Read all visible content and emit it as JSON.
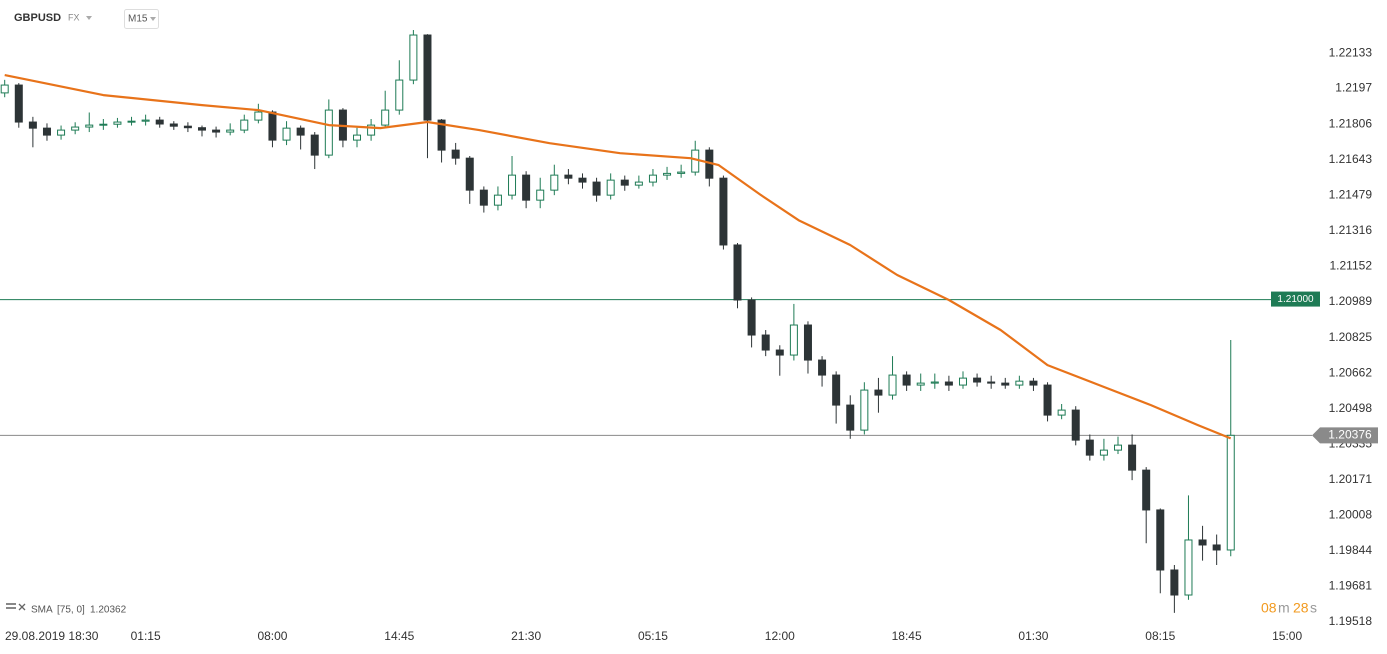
{
  "chart_data": {
    "type": "candlestick",
    "symbol": "GBPUSD",
    "market": "FX",
    "interval": "M15",
    "up_color": "#1e7b55",
    "down_color": "#2d3436",
    "xlim": [
      -1,
      280
    ],
    "ylim": [
      1.19472,
      1.22377
    ],
    "xticks": [
      {
        "value": 3,
        "label": "29.08.2019  18:30"
      },
      {
        "value": 30,
        "label": "01:15"
      },
      {
        "value": 57,
        "label": "08:00"
      },
      {
        "value": 84,
        "label": "14:45"
      },
      {
        "value": 111,
        "label": "21:30"
      },
      {
        "value": 138,
        "label": "05:15"
      },
      {
        "value": 165,
        "label": "12:00"
      },
      {
        "value": 192,
        "label": "18:45"
      },
      {
        "value": 219,
        "label": "01:30"
      },
      {
        "value": 246,
        "label": "08:15"
      },
      {
        "value": 273,
        "label": "15:00"
      }
    ],
    "yticks": [
      1.22133,
      1.2197,
      1.21806,
      1.21643,
      1.21479,
      1.21316,
      1.21152,
      1.20989,
      1.20825,
      1.20662,
      1.20498,
      1.20335,
      1.20171,
      1.20008,
      1.19844,
      1.19681,
      1.19518
    ],
    "x": [
      0,
      3,
      6,
      9,
      12,
      15,
      18,
      21,
      24,
      27,
      30,
      33,
      36,
      39,
      42,
      45,
      48,
      51,
      54,
      57,
      60,
      63,
      66,
      69,
      72,
      75,
      78,
      81,
      84,
      87,
      90,
      93,
      96,
      99,
      102,
      105,
      108,
      111,
      114,
      117,
      120,
      123,
      126,
      129,
      132,
      135,
      138,
      141,
      144,
      147,
      150,
      153,
      156,
      159,
      162,
      165,
      168,
      171,
      174,
      177,
      180,
      183,
      186,
      189,
      192,
      195,
      198,
      201,
      204,
      207,
      210,
      213,
      216,
      219,
      222,
      225,
      228,
      231,
      234,
      237,
      240,
      243,
      246,
      249,
      252,
      255,
      258,
      261
    ],
    "open": [
      1.2195,
      1.21986,
      1.21816,
      1.21788,
      1.21756,
      1.21779,
      1.21793,
      1.21802,
      1.21806,
      1.21816,
      1.2182,
      1.21825,
      1.21807,
      1.21797,
      1.2179,
      1.21779,
      1.2177,
      1.21779,
      1.21825,
      1.21862,
      1.21733,
      1.21788,
      1.21756,
      1.21664,
      1.21871,
      1.21733,
      1.21756,
      1.21802,
      1.21871,
      1.22009,
      1.22216,
      1.21825,
      1.21687,
      1.2165,
      1.21503,
      1.21434,
      1.2148,
      1.21572,
      1.21457,
      1.21503,
      1.21572,
      1.21558,
      1.2154,
      1.2148,
      1.21549,
      1.21526,
      1.2154,
      1.21572,
      1.2158,
      1.21586,
      1.21687,
      1.21558,
      1.21251,
      1.20998,
      1.20837,
      1.20768,
      1.20745,
      1.20883,
      1.20722,
      1.20653,
      1.20515,
      1.204,
      1.20584,
      1.20561,
      1.20653,
      1.20607,
      1.20616,
      1.20621,
      1.20607,
      1.20639,
      1.20621,
      1.20616,
      1.20607,
      1.20625,
      1.20607,
      1.20469,
      1.20492,
      1.20354,
      1.20285,
      1.20308,
      1.20331,
      1.20216,
      1.20033,
      1.19757,
      1.19642,
      1.19895,
      1.19872,
      1.19849
    ],
    "high": [
      1.2201,
      1.21995,
      1.2184,
      1.2181,
      1.218,
      1.21815,
      1.2186,
      1.2183,
      1.21835,
      1.2184,
      1.2185,
      1.2184,
      1.2182,
      1.21815,
      1.218,
      1.21795,
      1.2181,
      1.2185,
      1.219,
      1.2187,
      1.2182,
      1.218,
      1.2177,
      1.2192,
      1.2188,
      1.2179,
      1.2183,
      1.2196,
      1.221,
      1.22239,
      1.2222,
      1.2183,
      1.2172,
      1.2166,
      1.2152,
      1.2152,
      1.2166,
      1.2159,
      1.2156,
      1.2162,
      1.216,
      1.2158,
      1.2156,
      1.2158,
      1.2157,
      1.2157,
      1.216,
      1.2161,
      1.2162,
      1.2173,
      1.217,
      1.2157,
      1.2126,
      1.2101,
      1.2086,
      1.2079,
      1.2098,
      1.209,
      1.2074,
      1.2067,
      1.2056,
      1.2062,
      1.2064,
      1.2074,
      1.2067,
      1.2066,
      1.2066,
      1.2065,
      1.2067,
      1.2066,
      1.2065,
      1.2064,
      1.2065,
      1.2064,
      1.2062,
      1.2052,
      1.2051,
      1.2038,
      1.2036,
      1.2037,
      1.2038,
      1.2023,
      1.2004,
      1.1978,
      1.201,
      1.1996,
      1.1992,
      1.20814
    ],
    "low": [
      1.2193,
      1.2179,
      1.217,
      1.2173,
      1.21735,
      1.2176,
      1.2177,
      1.2178,
      1.2179,
      1.218,
      1.218,
      1.2179,
      1.2178,
      1.2177,
      1.2175,
      1.21745,
      1.21755,
      1.21765,
      1.2181,
      1.217,
      1.2171,
      1.2169,
      1.216,
      1.2165,
      1.217,
      1.217,
      1.2173,
      1.2179,
      1.2185,
      1.2199,
      1.2165,
      1.2163,
      1.2162,
      1.2144,
      1.214,
      1.2141,
      1.2146,
      1.2142,
      1.2142,
      1.2148,
      1.2153,
      1.2151,
      1.2145,
      1.2146,
      1.215,
      1.2151,
      1.2152,
      1.2155,
      1.2156,
      1.2157,
      1.2152,
      1.2123,
      1.2096,
      1.2078,
      1.2074,
      1.2065,
      1.2072,
      1.2066,
      1.206,
      1.2043,
      1.2036,
      1.2038,
      1.2048,
      1.2054,
      1.2058,
      1.2058,
      1.2059,
      1.2058,
      1.2059,
      1.206,
      1.2059,
      1.2059,
      1.2059,
      1.2058,
      1.2044,
      1.2045,
      1.2033,
      1.2026,
      1.2026,
      1.2029,
      1.2017,
      1.1988,
      1.1965,
      1.1956,
      1.1962,
      1.198,
      1.1978,
      1.1982
    ],
    "close": [
      1.21986,
      1.21816,
      1.21788,
      1.21756,
      1.21779,
      1.21793,
      1.21802,
      1.21806,
      1.21816,
      1.2182,
      1.21825,
      1.21807,
      1.21797,
      1.2179,
      1.21779,
      1.2177,
      1.21779,
      1.21825,
      1.21862,
      1.21733,
      1.21788,
      1.21756,
      1.21664,
      1.21871,
      1.21733,
      1.21756,
      1.21802,
      1.21871,
      1.22009,
      1.22216,
      1.21825,
      1.21687,
      1.2165,
      1.21503,
      1.21434,
      1.2148,
      1.21572,
      1.21457,
      1.21503,
      1.21572,
      1.21558,
      1.2154,
      1.2148,
      1.21549,
      1.21526,
      1.2154,
      1.21572,
      1.2158,
      1.21586,
      1.21687,
      1.21558,
      1.21251,
      1.20998,
      1.20837,
      1.20768,
      1.20745,
      1.20883,
      1.20722,
      1.20653,
      1.20515,
      1.204,
      1.20584,
      1.20561,
      1.20653,
      1.20607,
      1.20616,
      1.20621,
      1.20607,
      1.20639,
      1.20621,
      1.20616,
      1.20607,
      1.20625,
      1.20607,
      1.20469,
      1.20492,
      1.20354,
      1.20285,
      1.20308,
      1.20331,
      1.20216,
      1.20033,
      1.19757,
      1.19642,
      1.19895,
      1.19872,
      1.19849,
      1.20376
    ],
    "sma": {
      "name": "SMA",
      "params": "[75, 0]",
      "value": 1.20362,
      "color": "#e8731a",
      "x": [
        0,
        21,
        42,
        54,
        69,
        80,
        90,
        101,
        116,
        131,
        146,
        152,
        161,
        169,
        180,
        190,
        201,
        212,
        222,
        233,
        244,
        254,
        261
      ],
      "values": [
        1.22032,
        1.2194,
        1.21894,
        1.21871,
        1.21802,
        1.21788,
        1.21816,
        1.21779,
        1.21719,
        1.21673,
        1.2165,
        1.21618,
        1.2148,
        1.21365,
        1.21251,
        1.21113,
        1.20998,
        1.2086,
        1.20699,
        1.20607,
        1.20515,
        1.20423,
        1.20362
      ]
    },
    "level": {
      "value": 1.21,
      "label": "1.21000",
      "color": "#1e7b55"
    },
    "last_price": {
      "value": 1.20376,
      "color": "#8a8a8a"
    },
    "timer": {
      "minutes": "08",
      "minutes_unit": "m",
      "seconds": "28",
      "seconds_unit": "s",
      "color": "#f29a1f"
    }
  }
}
